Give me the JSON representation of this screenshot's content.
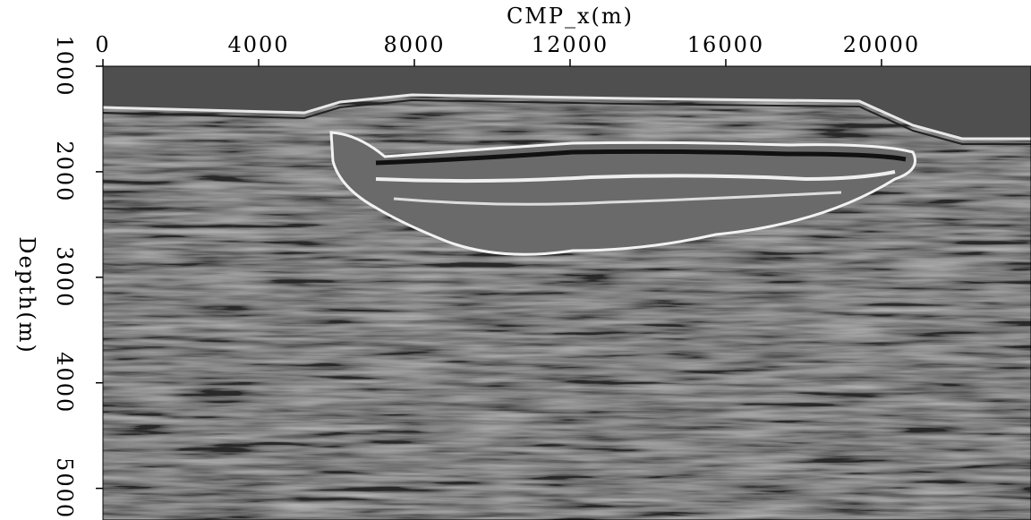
{
  "chart_data": {
    "type": "image",
    "xlabel": "CMP_x(m)",
    "ylabel": "Depth(m)",
    "xlim": [
      0,
      23840
    ],
    "xticks": [
      0,
      4000,
      8000,
      12000,
      16000,
      20000
    ],
    "ylim": [
      1000,
      5300
    ],
    "yticks": [
      1000,
      2000,
      3000,
      4000,
      5000
    ],
    "y_inverted": true
  }
}
